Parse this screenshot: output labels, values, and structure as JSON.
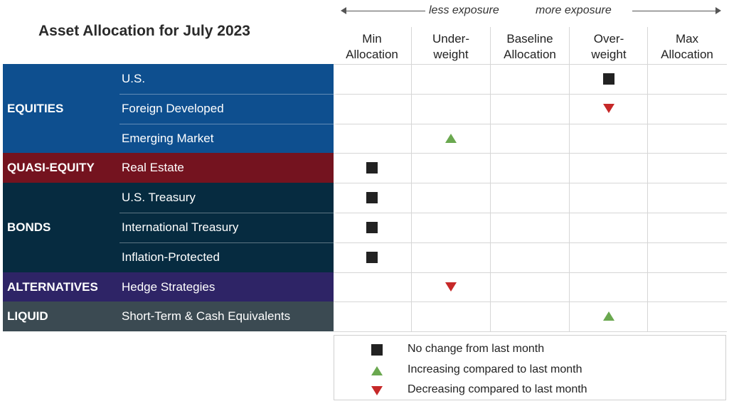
{
  "title": "Asset Allocation for July 2023",
  "exposure": {
    "less": "less exposure",
    "more": "more exposure"
  },
  "columns": [
    {
      "line1": "Min",
      "line2": "Allocation"
    },
    {
      "line1": "Under-",
      "line2": "weight"
    },
    {
      "line1": "Baseline",
      "line2": "Allocation"
    },
    {
      "line1": "Over-",
      "line2": "weight"
    },
    {
      "line1": "Max",
      "line2": "Allocation"
    }
  ],
  "colors": {
    "equities": "#0e4f8f",
    "quasi_equity": "#74131f",
    "bonds": "#062b40",
    "alternatives": "#2e2466",
    "liquid": "#3b4a52",
    "no_change": "#222222",
    "increase": "#6aa84f",
    "decrease": "#c62828"
  },
  "chart_data": {
    "type": "table",
    "title": "Asset Allocation for July 2023",
    "columns": [
      "Min Allocation",
      "Under-weight",
      "Baseline Allocation",
      "Over-weight",
      "Max Allocation"
    ],
    "groups": [
      {
        "label": "EQUITIES",
        "color_key": "equities",
        "rows": [
          {
            "label": "U.S.",
            "column": 3,
            "change": "no_change"
          },
          {
            "label": "Foreign Developed",
            "column": 3,
            "change": "decrease"
          },
          {
            "label": "Emerging Market",
            "column": 1,
            "change": "increase"
          }
        ]
      },
      {
        "label": "QUASI-EQUITY",
        "color_key": "quasi_equity",
        "rows": [
          {
            "label": "Real Estate",
            "column": 0,
            "change": "no_change"
          }
        ]
      },
      {
        "label": "BONDS",
        "color_key": "bonds",
        "rows": [
          {
            "label": "U.S. Treasury",
            "column": 0,
            "change": "no_change"
          },
          {
            "label": "International Treasury",
            "column": 0,
            "change": "no_change"
          },
          {
            "label": "Inflation-Protected",
            "column": 0,
            "change": "no_change"
          }
        ]
      },
      {
        "label": "ALTERNATIVES",
        "color_key": "alternatives",
        "rows": [
          {
            "label": "Hedge Strategies",
            "column": 1,
            "change": "decrease"
          }
        ]
      },
      {
        "label": "LIQUID",
        "color_key": "liquid",
        "rows": [
          {
            "label": "Short-Term & Cash Equivalents",
            "column": 3,
            "change": "increase"
          }
        ]
      }
    ],
    "legend": [
      {
        "change": "no_change",
        "label": "No change from last month"
      },
      {
        "change": "increase",
        "label": "Increasing compared to last month"
      },
      {
        "change": "decrease",
        "label": "Decreasing compared to last month"
      }
    ]
  }
}
